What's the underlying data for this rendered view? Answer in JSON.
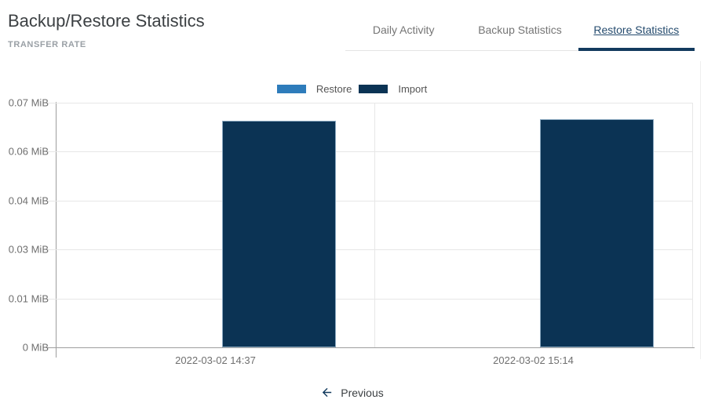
{
  "header": {
    "title": "Backup/Restore Statistics",
    "subtitle": "TRANSFER RATE"
  },
  "tabs": [
    {
      "label": "Daily Activity",
      "active": false
    },
    {
      "label": "Backup Statistics",
      "active": false
    },
    {
      "label": "Restore Statistics",
      "active": true
    }
  ],
  "legend": [
    {
      "label": "Restore",
      "color": "#2e7cbb"
    },
    {
      "label": "Import",
      "color": "#0b3354"
    }
  ],
  "chart_data": {
    "type": "bar",
    "title": "TRANSFER RATE",
    "unit": "MiB",
    "categories": [
      "2022-03-02 14:37",
      "2022-03-02 15:14"
    ],
    "series": [
      {
        "name": "Restore",
        "color": "#2e7cbb",
        "values": [
          0,
          0
        ]
      },
      {
        "name": "Import",
        "color": "#0b3354",
        "values": [
          0.0648,
          0.0652
        ]
      }
    ],
    "ylim": [
      0,
      0.07
    ],
    "yticks": [
      {
        "value": 0,
        "label": "0 MiB"
      },
      {
        "value": 0.014,
        "label": "0.01 MiB"
      },
      {
        "value": 0.028,
        "label": "0.03 MiB"
      },
      {
        "value": 0.042,
        "label": "0.04 MiB"
      },
      {
        "value": 0.056,
        "label": "0.06 MiB"
      },
      {
        "value": 0.07,
        "label": "0.07 MiB"
      }
    ],
    "grid": true,
    "legend_position": "top-center"
  },
  "footer": {
    "previous_label": "Previous"
  },
  "colors": {
    "accent_navy": "#123a5e",
    "bar_import": "#0b3354",
    "bar_restore": "#2e7cbb",
    "axis": "#9e9e9e",
    "gridline": "#e7e7e7"
  }
}
